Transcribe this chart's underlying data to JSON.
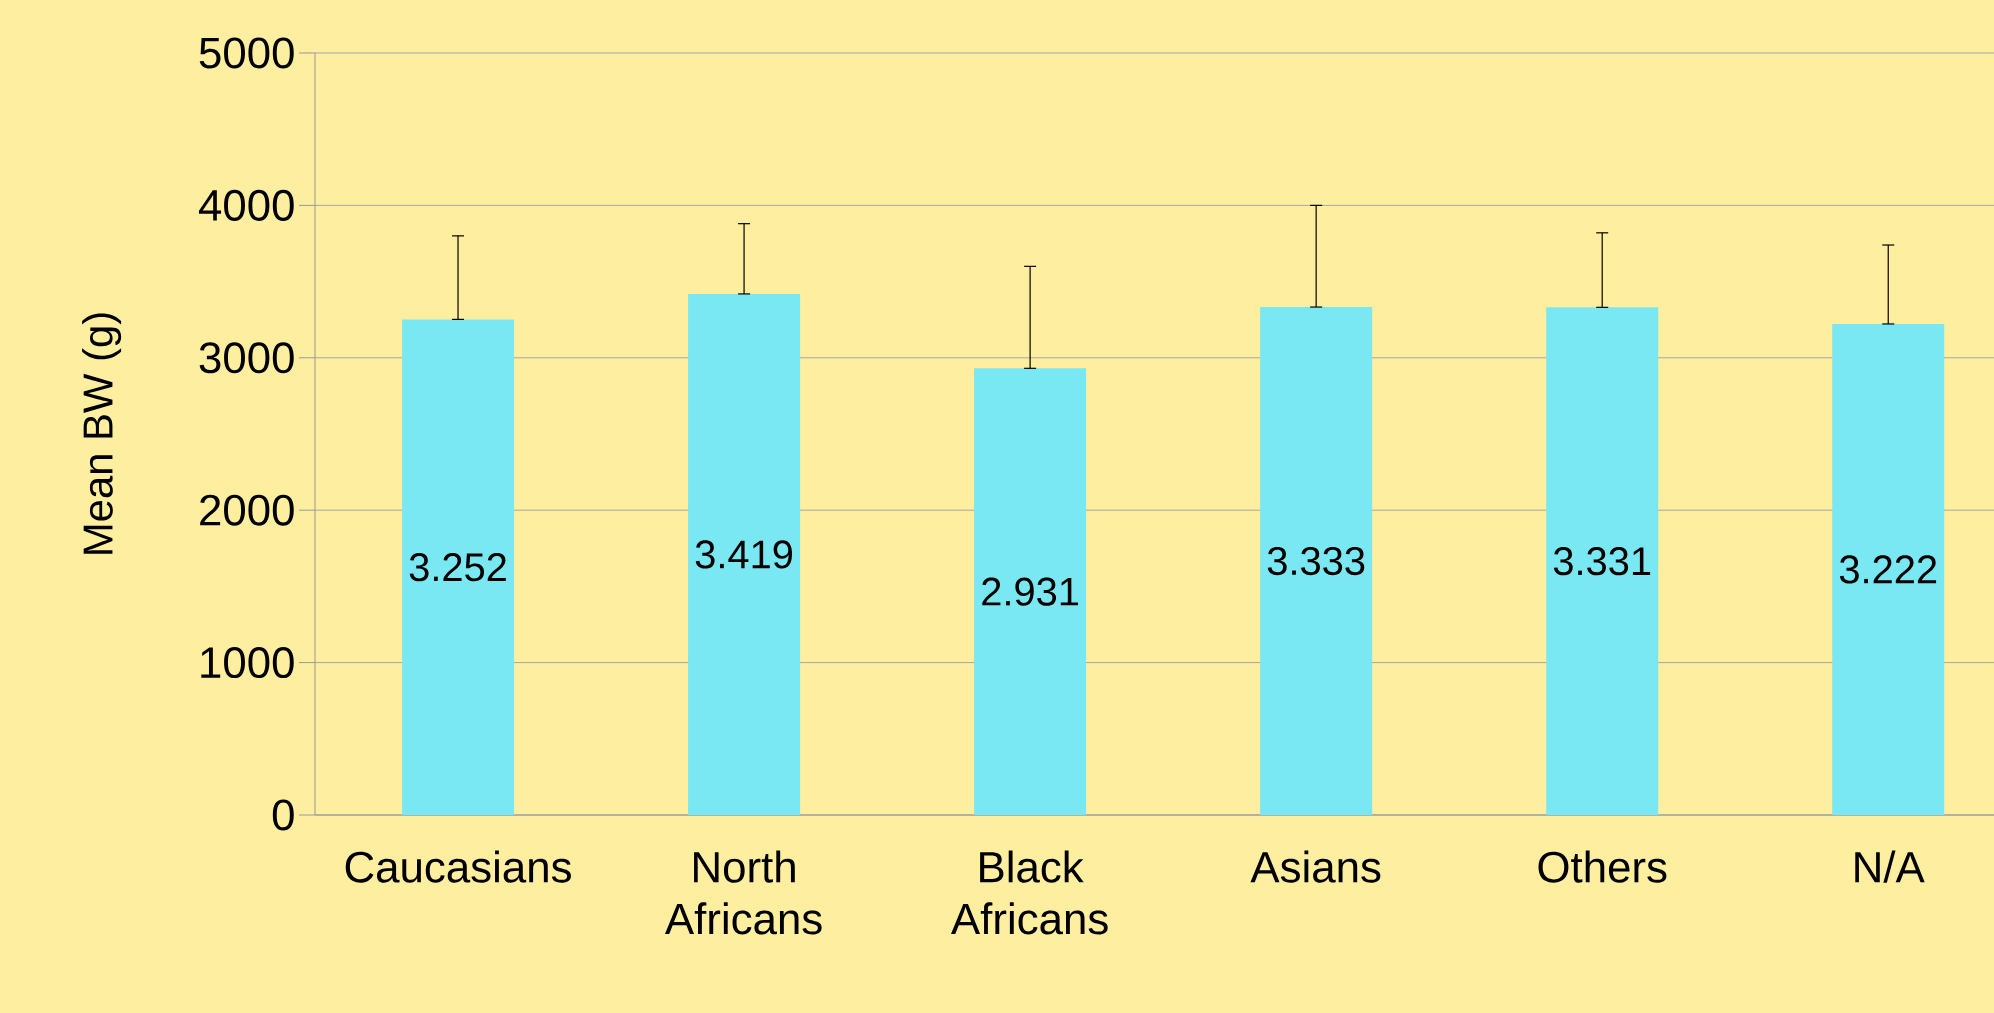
{
  "chart_data": {
    "type": "bar",
    "ylabel": "Mean BW (g)",
    "categories": [
      "Caucasians",
      "North Africans",
      "Black Africans",
      "Asians",
      "Others",
      "N/A"
    ],
    "values": [
      3252,
      3419,
      2931,
      3333,
      3331,
      3222
    ],
    "value_labels": [
      "3.252",
      "3.419",
      "2.931",
      "3.333",
      "3.331",
      "3.222"
    ],
    "errors": [
      [
        3252,
        3800
      ],
      [
        3419,
        3880
      ],
      [
        2931,
        3600
      ],
      [
        3333,
        4000
      ],
      [
        3331,
        3820
      ],
      [
        3222,
        3740
      ]
    ],
    "color": "#7ae8f2",
    "ylim": [
      0,
      5000
    ],
    "yticks": [
      0,
      1000,
      2000,
      3000,
      4000,
      5000
    ],
    "grid": "y"
  }
}
